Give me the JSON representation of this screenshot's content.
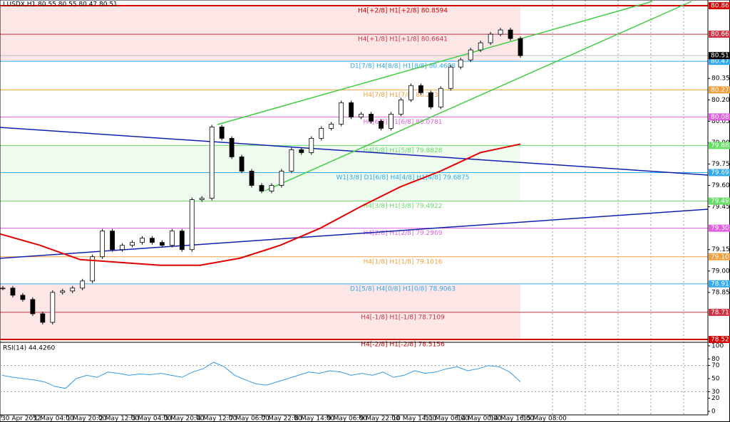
{
  "header": "I.USDX,H1  80.55 80.55 80.47 80.51",
  "chart_data": {
    "type": "candlestick",
    "closes": [
      78.88,
      78.83,
      78.8,
      78.7,
      78.64,
      78.85,
      78.86,
      78.88,
      78.93,
      79.1,
      79.28,
      79.15,
      79.18,
      79.2,
      79.23,
      79.2,
      79.18,
      79.28,
      79.15,
      79.5,
      79.51,
      80.01,
      79.93,
      79.8,
      79.7,
      79.6,
      79.56,
      79.6,
      79.7,
      79.85,
      79.83,
      79.93,
      80.0,
      80.03,
      80.18,
      80.08,
      80.1,
      80.05,
      80.0,
      80.1,
      80.2,
      80.3,
      80.25,
      80.15,
      80.28,
      80.43,
      80.48,
      80.55,
      80.6,
      80.66,
      80.69,
      80.63,
      80.51
    ],
    "ma": [
      79.26,
      79.18,
      79.08,
      79.06,
      79.04,
      79.04,
      79.09,
      79.18,
      79.3,
      79.45,
      79.59,
      79.7,
      79.83,
      79.89
    ],
    "ma_color": "#e00000",
    "ylim": [
      78.505,
      80.9
    ],
    "yticks": [
      80.35,
      {
        "value": 80.2,
        "label": "80.20"
      },
      80.05,
      {
        "value": 79.9,
        "label": "79.90"
      },
      79.75,
      {
        "value": 79.6,
        "label": "79.60"
      },
      79.45,
      79.15,
      {
        "value": 79,
        "label": "79.00"
      },
      78.85
    ],
    "categories": [
      "30 Apr 2012",
      "1 May 04:00",
      "1 May 20:00",
      "2 May 12:00",
      "3 May 04:00",
      "3 May 20:00",
      "4 May 12:00",
      "7 May 06:00",
      "7 May 22:00",
      "8 May 14:00",
      "9 May 06:00",
      "9 May 22:00",
      "10 May 14:00",
      "11 May 06:00",
      "14 May 00:00",
      "14 May 16:00",
      "15 May 08:00"
    ],
    "current": {
      "value": 80.51,
      "label": "80.51"
    },
    "levels": [
      {
        "value": 80.86,
        "price_label": "80.86",
        "label": "H4[+2/8] H1[+2/8] 80.8594",
        "color": "#d00000"
      },
      {
        "value": 80.66,
        "price_label": "80.66",
        "label": "H4[+1/8] H1[+1/8] 80.6641",
        "color": "#cc3344"
      },
      {
        "value": 80.47,
        "price_label": "80.47",
        "label": "D1[7/8] H4[8/8] H1[8/8] 80.4688",
        "color": "#33aaee"
      },
      {
        "value": 80.27,
        "price_label": "80.27",
        "label": "H4[7/8] H1[7/8] 80.2734",
        "color": "#f0a040"
      },
      {
        "value": 80.08,
        "price_label": "80.08",
        "label": "H4[6/8] H1[6/8] 80.0781",
        "color": "#e060e0"
      },
      {
        "value": 79.88,
        "price_label": "79.88",
        "label": "H4[5/8] H1[5/8] 79.8828",
        "color": "#66dd66"
      },
      {
        "value": 79.69,
        "price_label": "79.69",
        "label": "W1[3/8] D1[6/8] H4[4/8] H1[4/8] 79.6875",
        "color": "#33aaee"
      },
      {
        "value": 79.49,
        "price_label": "79.49",
        "label": "H4[3/8] H1[3/8] 79.4922",
        "color": "#66dd66"
      },
      {
        "value": 79.3,
        "price_label": "79.30",
        "label": "H4[2/8] H1[2/8] 79.2969",
        "color": "#e060e0"
      },
      {
        "value": 79.1,
        "price_label": "79.10",
        "label": "H4[1/8] H1[1/8] 79.1016",
        "color": "#f0a040"
      },
      {
        "value": 78.91,
        "price_label": "78.91",
        "label": "D1[5/8] H4[0/8] H1[0/8] 78.9063",
        "color": "#33aaee"
      },
      {
        "value": 78.71,
        "price_label": "78.71",
        "label": "H4[-1/8] H1[-1/8] 78.7109",
        "color": "#cc3344"
      },
      {
        "value": 78.52,
        "price_label": "78.52",
        "label": "H4[-2/8] H1[-2/8] 78.5156",
        "color": "#d00000"
      }
    ],
    "rsi": {
      "label": "RSI(14) 44.4260",
      "color": "#3399ee",
      "values": [
        55,
        52,
        50,
        48,
        45,
        38,
        35,
        50,
        55,
        52,
        60,
        58,
        55,
        57,
        56,
        58,
        55,
        52,
        60,
        65,
        75,
        68,
        55,
        48,
        42,
        40,
        45,
        50,
        55,
        60,
        58,
        62,
        60,
        55,
        58,
        55,
        60,
        52,
        55,
        62,
        58,
        60,
        65,
        68,
        62,
        65,
        70,
        68,
        60,
        45
      ],
      "ylim": [
        0,
        100
      ],
      "yticks": [
        100,
        80,
        70,
        50,
        30,
        20,
        0
      ],
      "levels": [
        70,
        30
      ]
    }
  }
}
